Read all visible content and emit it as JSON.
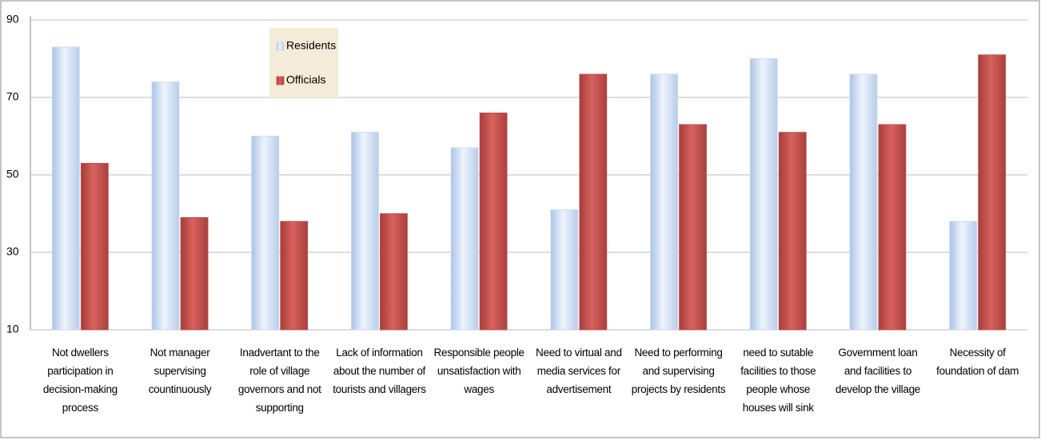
{
  "chart_data": {
    "type": "bar",
    "categories": [
      "Not dwellers participation in decision-making process",
      "Not manager supervising countinuously",
      "Inadvertant to the role of village governors and not supporting",
      "Lack of information about the number of tourists and villagers",
      "Responsible people unsatisfaction with wages",
      "Need to virtual and media services for advertisement",
      "Need to performing and supervising projects by residents",
      "need to sutable facilities to those people whose houses will sink",
      "Government loan and facilities to develop the village",
      "Necessity of foundation of dam"
    ],
    "series": [
      {
        "name": "Residents",
        "color": "#c6d9f1",
        "values": [
          83,
          74,
          60,
          61,
          57,
          41,
          76,
          80,
          76,
          38
        ]
      },
      {
        "name": "Officials",
        "color": "#c0504d",
        "values": [
          53,
          39,
          38,
          40,
          66,
          76,
          63,
          61,
          63,
          81
        ]
      }
    ],
    "ylim": [
      10,
      90
    ],
    "yticks": [
      10,
      30,
      50,
      70,
      90
    ],
    "grid": true,
    "legend": "upper-left"
  }
}
